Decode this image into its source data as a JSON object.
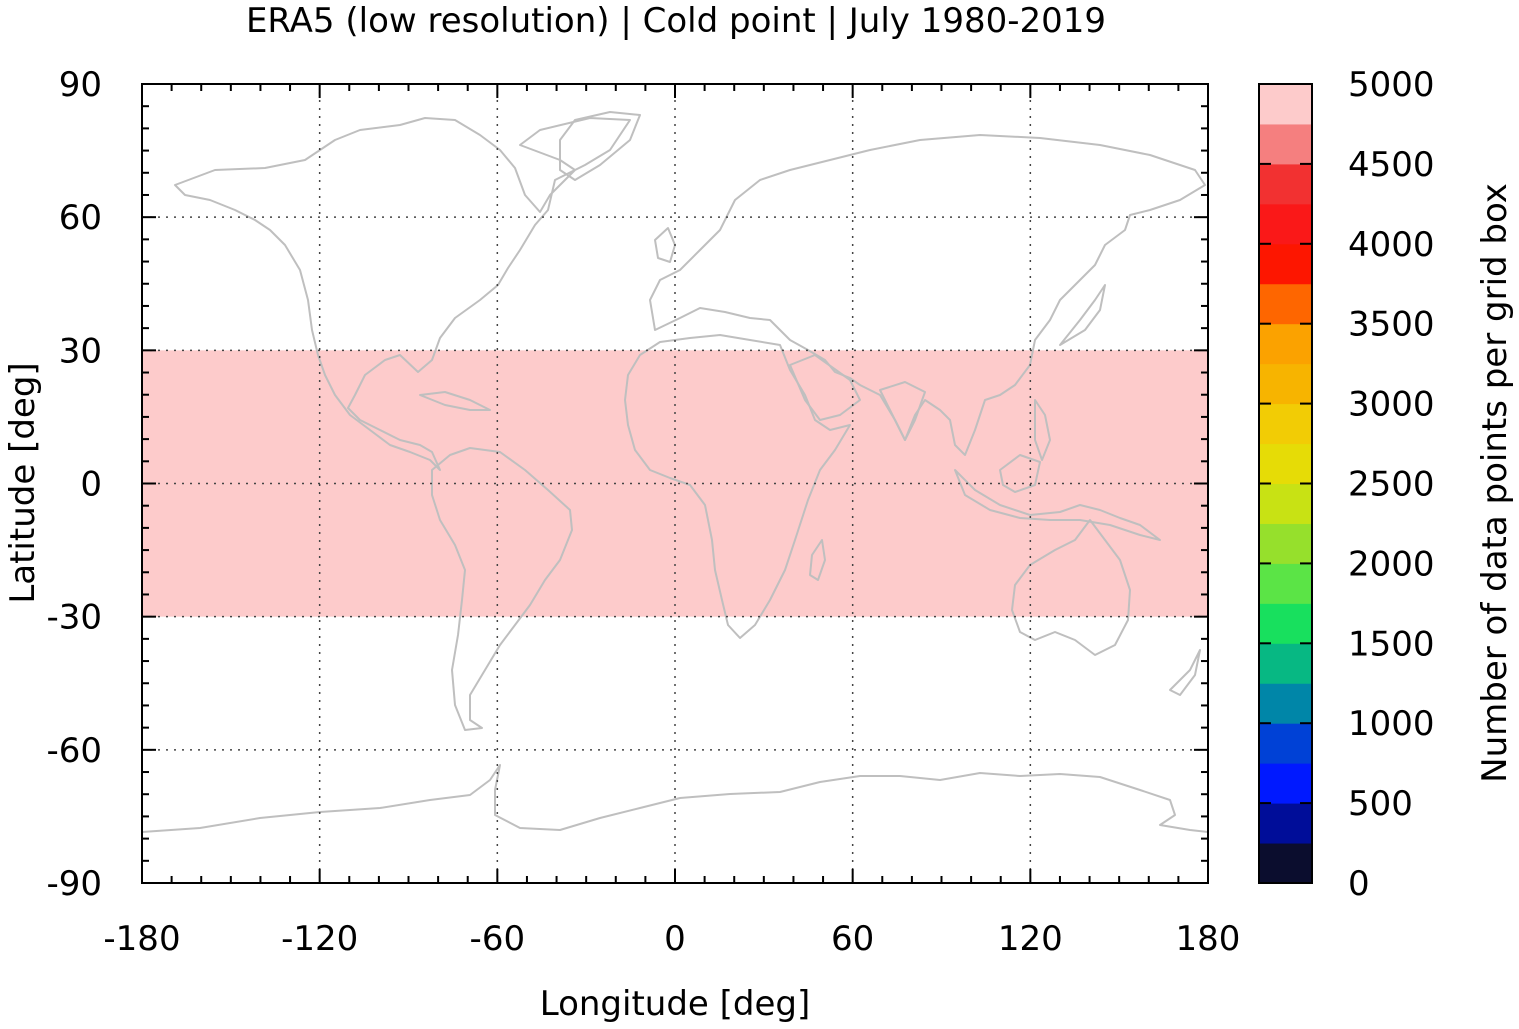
{
  "title": "ERA5 (low resolution) | Cold point | July 1980-2019",
  "colorbar": {
    "label": "Number of data points per grid box",
    "colors": [
      "#0b0d2e",
      "#000d99",
      "#0019ff",
      "#0041d6",
      "#0086a8",
      "#07b883",
      "#18e05e",
      "#5be446",
      "#96e02c",
      "#c8e214",
      "#e6dc06",
      "#f2cc05",
      "#f7b400",
      "#fba200",
      "#fe6600",
      "#fd1600",
      "#fa1818",
      "#f23131",
      "#f57f7f",
      "#fdcbcb"
    ],
    "ticks": [
      "0",
      "500",
      "1000",
      "1500",
      "2000",
      "2500",
      "3000",
      "3500",
      "4000",
      "4500",
      "5000"
    ]
  },
  "chart_data": {
    "type": "heatmap",
    "title": "ERA5 (low resolution) | Cold point | July 1980-2019",
    "xlabel": "Longitude [deg]",
    "ylabel": "Latitude [deg]",
    "xlim": [
      -180,
      180
    ],
    "ylim": [
      -90,
      90
    ],
    "x_ticks": [
      "-180",
      "-120",
      "-60",
      "0",
      "60",
      "120",
      "180"
    ],
    "y_ticks": [
      "90",
      "60",
      "30",
      "0",
      "-30",
      "-60",
      "-90"
    ],
    "grid": "dotted at 60 deg longitude and 30 deg latitude",
    "value_range": [
      0,
      5000
    ],
    "regions": [
      {
        "lon": [
          -180,
          180
        ],
        "lat": [
          -30,
          30
        ],
        "value": 5000,
        "color": "#fdcbcb"
      }
    ],
    "outside_regions": "no data (white)",
    "background_map": "coastlines",
    "coastline_color": "#bfbfbf"
  }
}
